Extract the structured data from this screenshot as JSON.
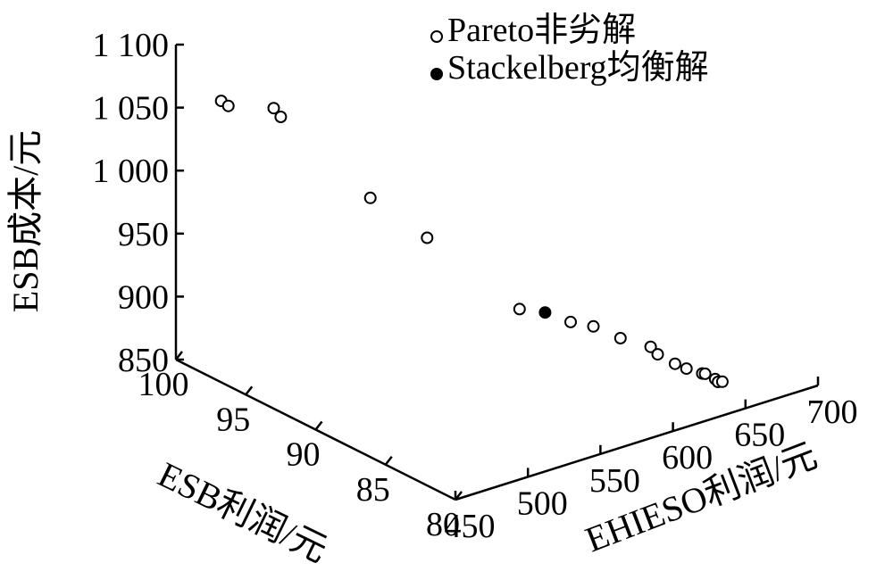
{
  "chart_data": {
    "type": "scatter",
    "projection": "3d",
    "x_axis": {
      "label": "EHIESO利润/元",
      "ticks": [
        "450",
        "500",
        "550",
        "600",
        "650",
        "700"
      ],
      "range": [
        450,
        700
      ]
    },
    "y_axis": {
      "label": "ESB利润/元",
      "ticks": [
        "80",
        "85",
        "90",
        "95",
        "100"
      ],
      "range": [
        80,
        100
      ]
    },
    "z_axis": {
      "label": "ESB成本/元",
      "ticks": [
        "850",
        "900",
        "950",
        "1 000",
        "1 050",
        "1 100"
      ],
      "range": [
        850,
        1100
      ]
    },
    "legend": [
      {
        "marker": "open-circle",
        "label": "Pareto非劣解"
      },
      {
        "marker": "filled-circle",
        "label": "Stackelberg均衡解"
      }
    ],
    "series": [
      {
        "name": "Pareto非劣解",
        "marker": "open-circle",
        "points": [
          {
            "x": 461,
            "y": 97.9,
            "z": 1063
          },
          {
            "x": 463,
            "y": 97.6,
            "z": 1060
          },
          {
            "x": 475,
            "y": 95.6,
            "z": 1065
          },
          {
            "x": 477,
            "y": 95.3,
            "z": 1059
          },
          {
            "x": 505,
            "y": 91.8,
            "z": 1004
          },
          {
            "x": 523,
            "y": 89.6,
            "z": 978
          },
          {
            "x": 553,
            "y": 86.1,
            "z": 930
          },
          {
            "x": 568,
            "y": 84.0,
            "z": 926
          },
          {
            "x": 575,
            "y": 83.1,
            "z": 925
          },
          {
            "x": 585,
            "y": 82.2,
            "z": 917
          },
          {
            "x": 600,
            "y": 81.6,
            "z": 908
          },
          {
            "x": 602,
            "y": 81.3,
            "z": 903
          },
          {
            "x": 612,
            "y": 81.1,
            "z": 893
          },
          {
            "x": 617,
            "y": 80.8,
            "z": 889
          },
          {
            "x": 626,
            "y": 80.6,
            "z": 883
          },
          {
            "x": 627,
            "y": 80.5,
            "z": 883
          },
          {
            "x": 632,
            "y": 80.3,
            "z": 878
          },
          {
            "x": 633,
            "y": 80.2,
            "z": 876
          },
          {
            "x": 635,
            "y": 80.1,
            "z": 876
          }
        ]
      },
      {
        "name": "Stackelberg均衡解",
        "marker": "filled-circle",
        "points": [
          {
            "x": 561,
            "y": 85.1,
            "z": 930
          }
        ]
      }
    ]
  },
  "colors": {
    "ink": "#000000",
    "background": "#ffffff"
  }
}
